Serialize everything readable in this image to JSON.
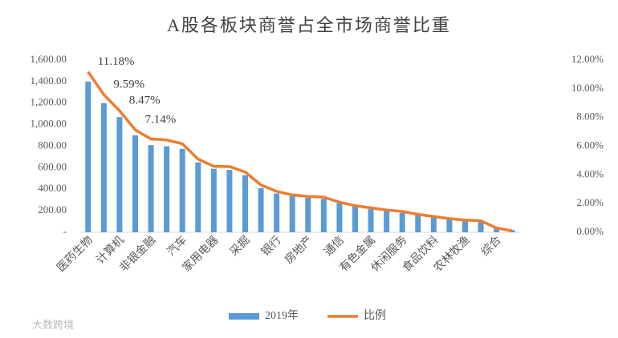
{
  "chart_data": {
    "type": "bar-line",
    "title": "A股各板块商誉占全市场商誉比重",
    "categories": [
      "医药生物",
      null,
      "计算机",
      null,
      "非银金融",
      null,
      "汽车",
      null,
      "家用电器",
      null,
      "采掘",
      null,
      "银行",
      null,
      "房地产",
      null,
      "通信",
      null,
      "有色金属",
      null,
      "休闲服务",
      null,
      "食品饮料",
      null,
      "农林牧渔",
      null,
      "综合",
      null
    ],
    "series": [
      {
        "name": "2019年",
        "color": "#5b9bd5",
        "values": [
          1400,
          1200,
          1070,
          900,
          810,
          800,
          775,
          650,
          590,
          580,
          530,
          410,
          360,
          335,
          320,
          310,
          270,
          240,
          215,
          200,
          180,
          165,
          140,
          125,
          110,
          95,
          40,
          20
        ]
      },
      {
        "name": "比例",
        "color": "#ed7d31",
        "axis": "y2",
        "values": [
          11.18,
          9.59,
          8.47,
          7.14,
          6.5,
          6.43,
          6.17,
          5.1,
          4.6,
          4.58,
          4.2,
          3.3,
          2.85,
          2.6,
          2.5,
          2.45,
          2.1,
          1.85,
          1.7,
          1.55,
          1.45,
          1.25,
          1.1,
          0.95,
          0.85,
          0.8,
          0.3,
          0.1
        ],
        "value_labels": [
          "11.18%",
          "9.59%",
          "8.47%",
          "7.14%",
          null,
          null,
          null,
          null,
          null,
          null,
          null,
          null,
          null,
          null,
          null,
          null,
          null,
          null,
          null,
          null,
          null,
          null,
          null,
          null,
          null,
          null,
          null,
          null
        ]
      }
    ],
    "ylim": [
      0,
      1600
    ],
    "yticks": [
      {
        "value": 0,
        "label": "-"
      },
      {
        "value": 200,
        "label": "200.00"
      },
      {
        "value": 400,
        "label": "400.00"
      },
      {
        "value": 600,
        "label": "600.00"
      },
      {
        "value": 800,
        "label": "800.00"
      },
      {
        "value": 1000,
        "label": "1,000.00"
      },
      {
        "value": 1200,
        "label": "1,200.00"
      },
      {
        "value": 1400,
        "label": "1,400.00"
      },
      {
        "value": 1600,
        "label": "1,600.00"
      }
    ],
    "y2lim": [
      0,
      12
    ],
    "y2ticks": [
      {
        "value": 0,
        "label": "0.00%"
      },
      {
        "value": 2,
        "label": "2.00%"
      },
      {
        "value": 4,
        "label": "4.00%"
      },
      {
        "value": 6,
        "label": "6.00%"
      },
      {
        "value": 8,
        "label": "8.00%"
      },
      {
        "value": 10,
        "label": "10.00%"
      },
      {
        "value": 12,
        "label": "12.00%"
      }
    ],
    "legend": "bottom",
    "watermark": "大数跨境"
  }
}
